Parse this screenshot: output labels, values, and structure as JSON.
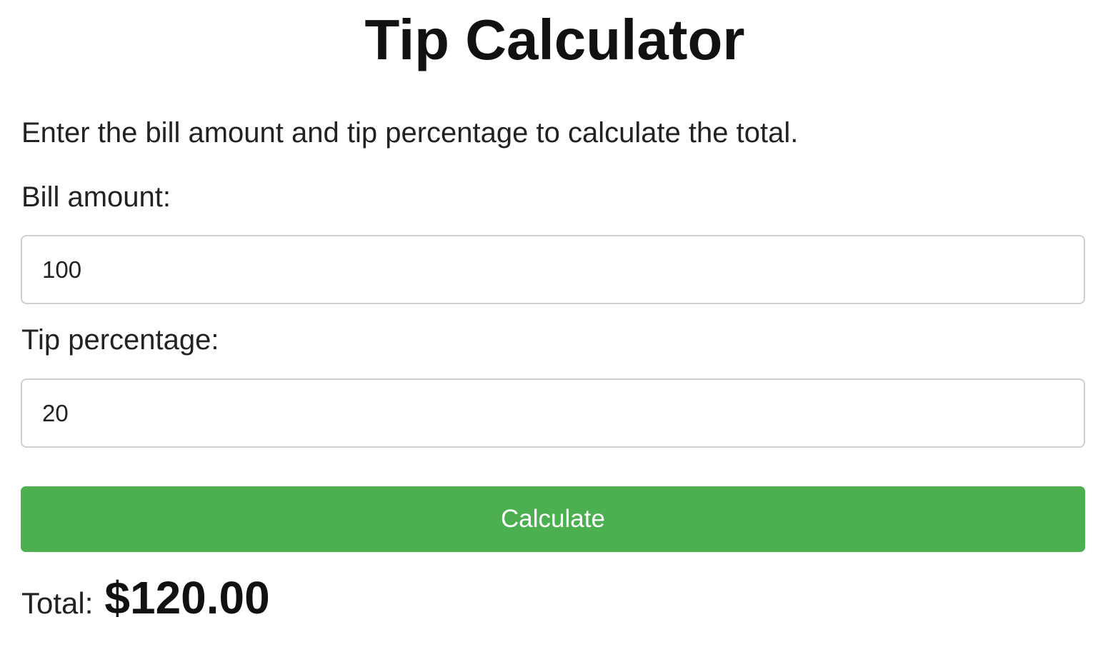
{
  "header": {
    "title": "Tip Calculator"
  },
  "form": {
    "instructions": "Enter the bill amount and tip percentage to calculate the total.",
    "bill": {
      "label": "Bill amount:",
      "value": "100"
    },
    "tip": {
      "label": "Tip percentage:",
      "value": "20"
    },
    "calculate_label": "Calculate"
  },
  "result": {
    "label": "Total:",
    "value": "$120.00"
  },
  "colors": {
    "button_background": "#4caf50",
    "button_text": "#ffffff",
    "input_border": "#cfcfcf"
  }
}
